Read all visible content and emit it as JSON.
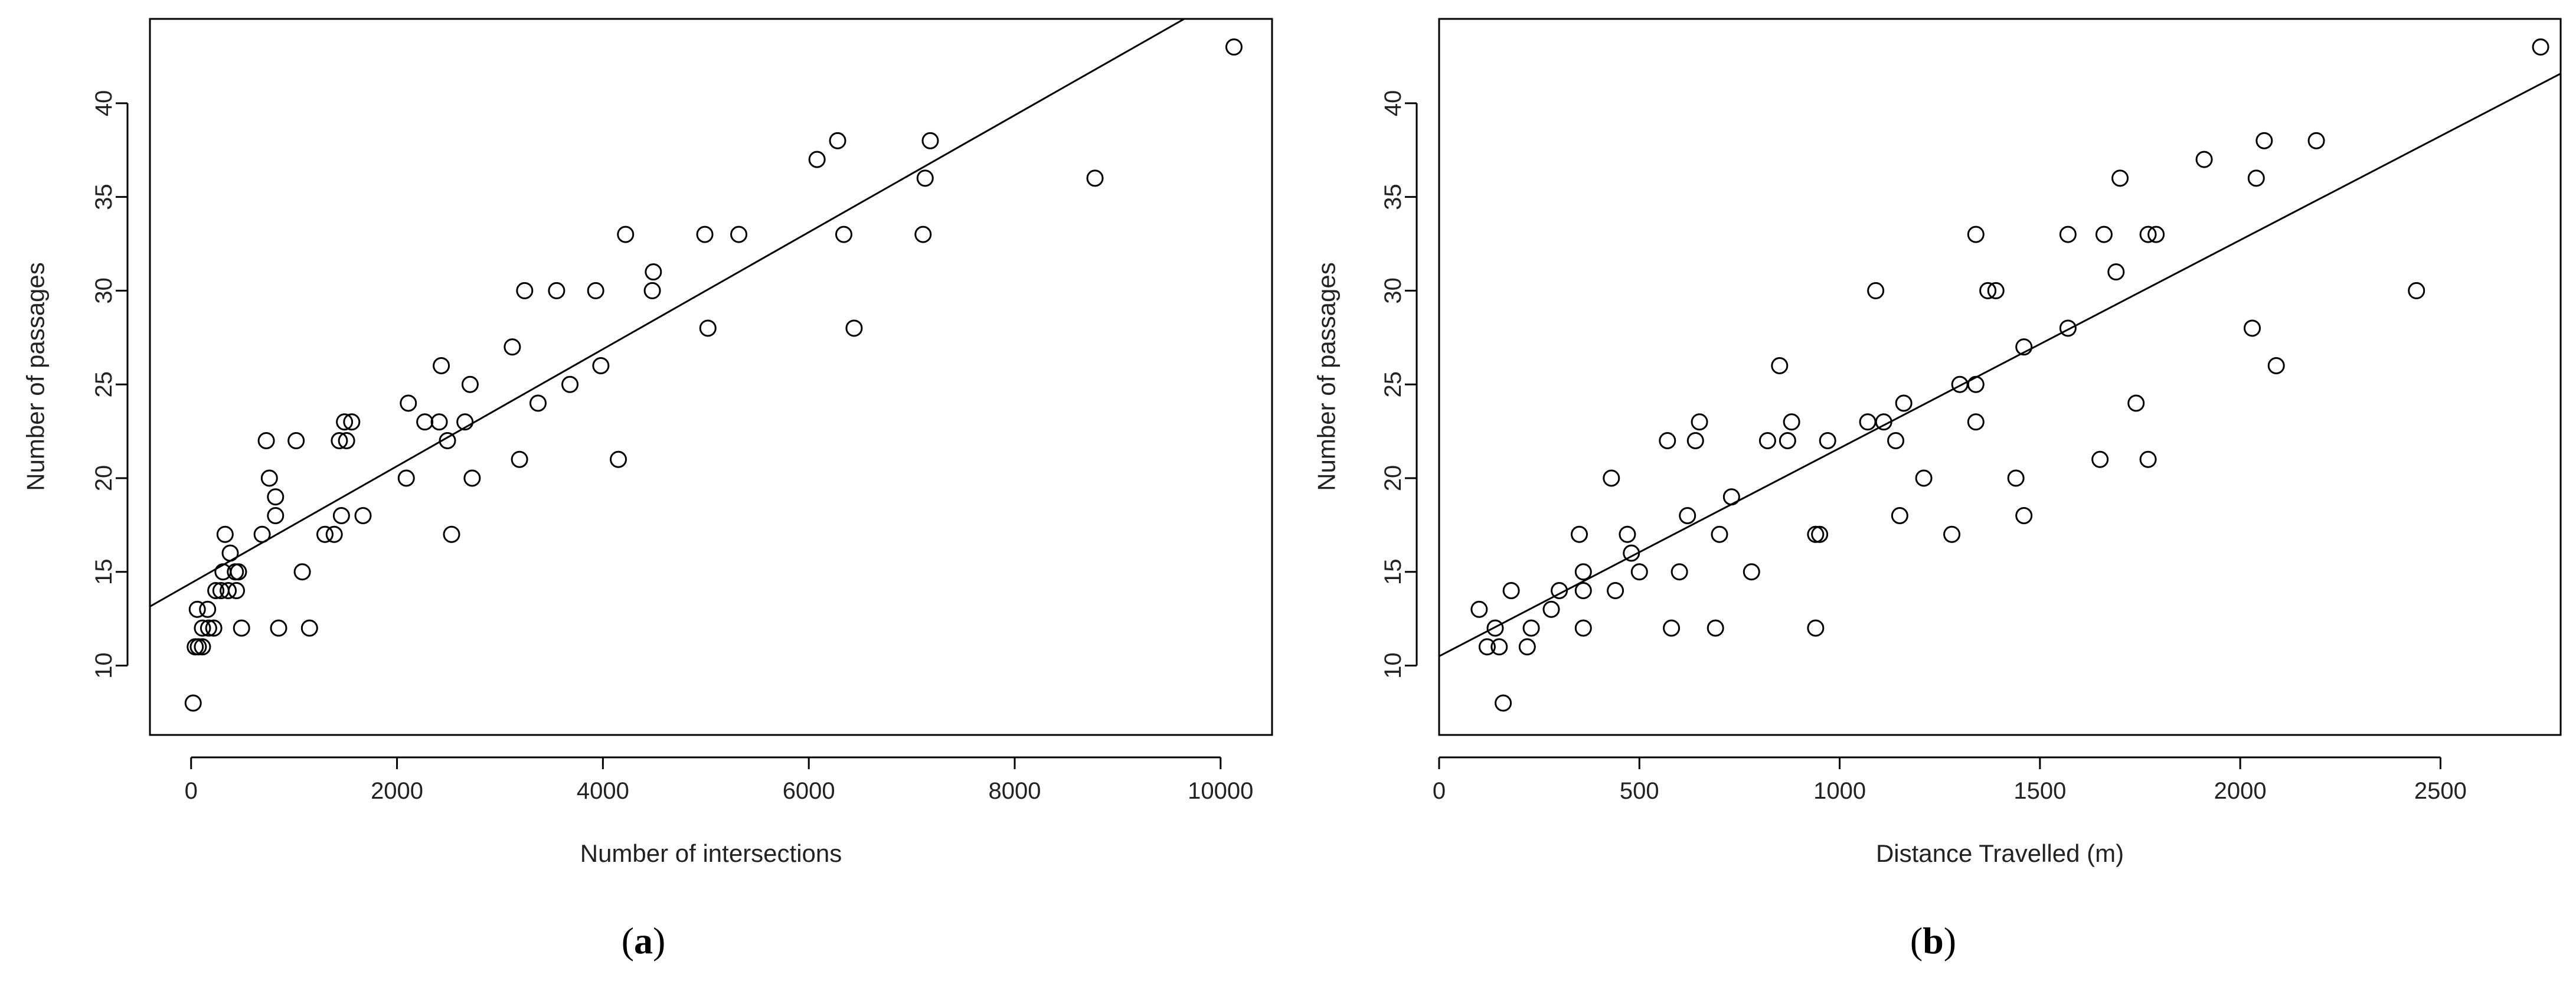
{
  "panels": [
    {
      "label_open": "(",
      "label_letter": "a",
      "label_close": ")"
    },
    {
      "label_open": "(",
      "label_letter": "b",
      "label_close": ")"
    }
  ],
  "chart_data": [
    {
      "type": "scatter",
      "title": "",
      "xlabel": "Number of intersections",
      "ylabel": "Number of passages",
      "xlim": [
        -400,
        10500
      ],
      "ylim": [
        6.3,
        44.5
      ],
      "xticks": [
        0,
        2000,
        4000,
        6000,
        8000,
        10000
      ],
      "yticks": [
        10,
        15,
        20,
        25,
        30,
        35,
        40
      ],
      "grid": false,
      "regression_line": {
        "intercept": 14.4,
        "slope": 0.00312
      },
      "points": [
        [
          20,
          8
        ],
        [
          40,
          11
        ],
        [
          70,
          11
        ],
        [
          110,
          11
        ],
        [
          60,
          13
        ],
        [
          160,
          13
        ],
        [
          110,
          12
        ],
        [
          170,
          12
        ],
        [
          220,
          12
        ],
        [
          240,
          14
        ],
        [
          290,
          14
        ],
        [
          310,
          15
        ],
        [
          360,
          14
        ],
        [
          330,
          17
        ],
        [
          380,
          16
        ],
        [
          440,
          14
        ],
        [
          430,
          15
        ],
        [
          460,
          15
        ],
        [
          490,
          12
        ],
        [
          690,
          17
        ],
        [
          730,
          22
        ],
        [
          760,
          20
        ],
        [
          820,
          18
        ],
        [
          820,
          19
        ],
        [
          850,
          12
        ],
        [
          1020,
          22
        ],
        [
          1080,
          15
        ],
        [
          1150,
          12
        ],
        [
          1300,
          17
        ],
        [
          1390,
          17
        ],
        [
          1440,
          22
        ],
        [
          1460,
          18
        ],
        [
          1490,
          23
        ],
        [
          1510,
          22
        ],
        [
          1560,
          23
        ],
        [
          1670,
          18
        ],
        [
          2090,
          20
        ],
        [
          2110,
          24
        ],
        [
          2270,
          23
        ],
        [
          2410,
          23
        ],
        [
          2430,
          26
        ],
        [
          2490,
          22
        ],
        [
          2530,
          17
        ],
        [
          2660,
          23
        ],
        [
          2710,
          25
        ],
        [
          2730,
          20
        ],
        [
          3120,
          27
        ],
        [
          3190,
          21
        ],
        [
          3240,
          30
        ],
        [
          3370,
          24
        ],
        [
          3550,
          30
        ],
        [
          3680,
          25
        ],
        [
          3930,
          30
        ],
        [
          3980,
          26
        ],
        [
          4150,
          21
        ],
        [
          4220,
          33
        ],
        [
          4480,
          30
        ],
        [
          4490,
          31
        ],
        [
          4990,
          33
        ],
        [
          5020,
          28
        ],
        [
          5320,
          33
        ],
        [
          6080,
          37
        ],
        [
          6280,
          38
        ],
        [
          6340,
          33
        ],
        [
          6440,
          28
        ],
        [
          7110,
          33
        ],
        [
          7130,
          36
        ],
        [
          7180,
          38
        ],
        [
          8780,
          36
        ],
        [
          10130,
          43
        ]
      ]
    },
    {
      "type": "scatter",
      "title": "",
      "xlabel": "Distance Travelled (m)",
      "ylabel": "Number of passages",
      "xlim": [
        0,
        2800
      ],
      "ylim": [
        6.3,
        44.5
      ],
      "xticks": [
        0,
        500,
        1000,
        1500,
        2000,
        2500
      ],
      "yticks": [
        10,
        15,
        20,
        25,
        30,
        35,
        40
      ],
      "grid": false,
      "regression_line": {
        "intercept": 10.5,
        "slope": 0.0111
      },
      "points": [
        [
          100,
          13
        ],
        [
          120,
          11
        ],
        [
          140,
          12
        ],
        [
          150,
          11
        ],
        [
          160,
          8
        ],
        [
          180,
          14
        ],
        [
          220,
          11
        ],
        [
          230,
          12
        ],
        [
          280,
          13
        ],
        [
          300,
          14
        ],
        [
          350,
          17
        ],
        [
          360,
          12
        ],
        [
          360,
          15
        ],
        [
          360,
          14
        ],
        [
          430,
          20
        ],
        [
          440,
          14
        ],
        [
          470,
          17
        ],
        [
          480,
          16
        ],
        [
          500,
          15
        ],
        [
          570,
          22
        ],
        [
          580,
          12
        ],
        [
          600,
          15
        ],
        [
          620,
          18
        ],
        [
          640,
          22
        ],
        [
          650,
          23
        ],
        [
          690,
          12
        ],
        [
          700,
          17
        ],
        [
          730,
          19
        ],
        [
          780,
          15
        ],
        [
          820,
          22
        ],
        [
          850,
          26
        ],
        [
          870,
          22
        ],
        [
          880,
          23
        ],
        [
          940,
          12
        ],
        [
          940,
          17
        ],
        [
          950,
          17
        ],
        [
          970,
          22
        ],
        [
          1070,
          23
        ],
        [
          1090,
          30
        ],
        [
          1110,
          23
        ],
        [
          1140,
          22
        ],
        [
          1150,
          18
        ],
        [
          1160,
          24
        ],
        [
          1210,
          20
        ],
        [
          1280,
          17
        ],
        [
          1300,
          25
        ],
        [
          1340,
          33
        ],
        [
          1340,
          25
        ],
        [
          1340,
          23
        ],
        [
          1370,
          30
        ],
        [
          1390,
          30
        ],
        [
          1440,
          20
        ],
        [
          1460,
          18
        ],
        [
          1460,
          27
        ],
        [
          1570,
          28
        ],
        [
          1570,
          33
        ],
        [
          1650,
          21
        ],
        [
          1660,
          33
        ],
        [
          1690,
          31
        ],
        [
          1700,
          36
        ],
        [
          1740,
          24
        ],
        [
          1770,
          21
        ],
        [
          1770,
          33
        ],
        [
          1790,
          33
        ],
        [
          1910,
          37
        ],
        [
          2030,
          28
        ],
        [
          2040,
          36
        ],
        [
          2060,
          38
        ],
        [
          2090,
          26
        ],
        [
          2190,
          38
        ],
        [
          2440,
          30
        ],
        [
          2750,
          43
        ]
      ]
    }
  ]
}
